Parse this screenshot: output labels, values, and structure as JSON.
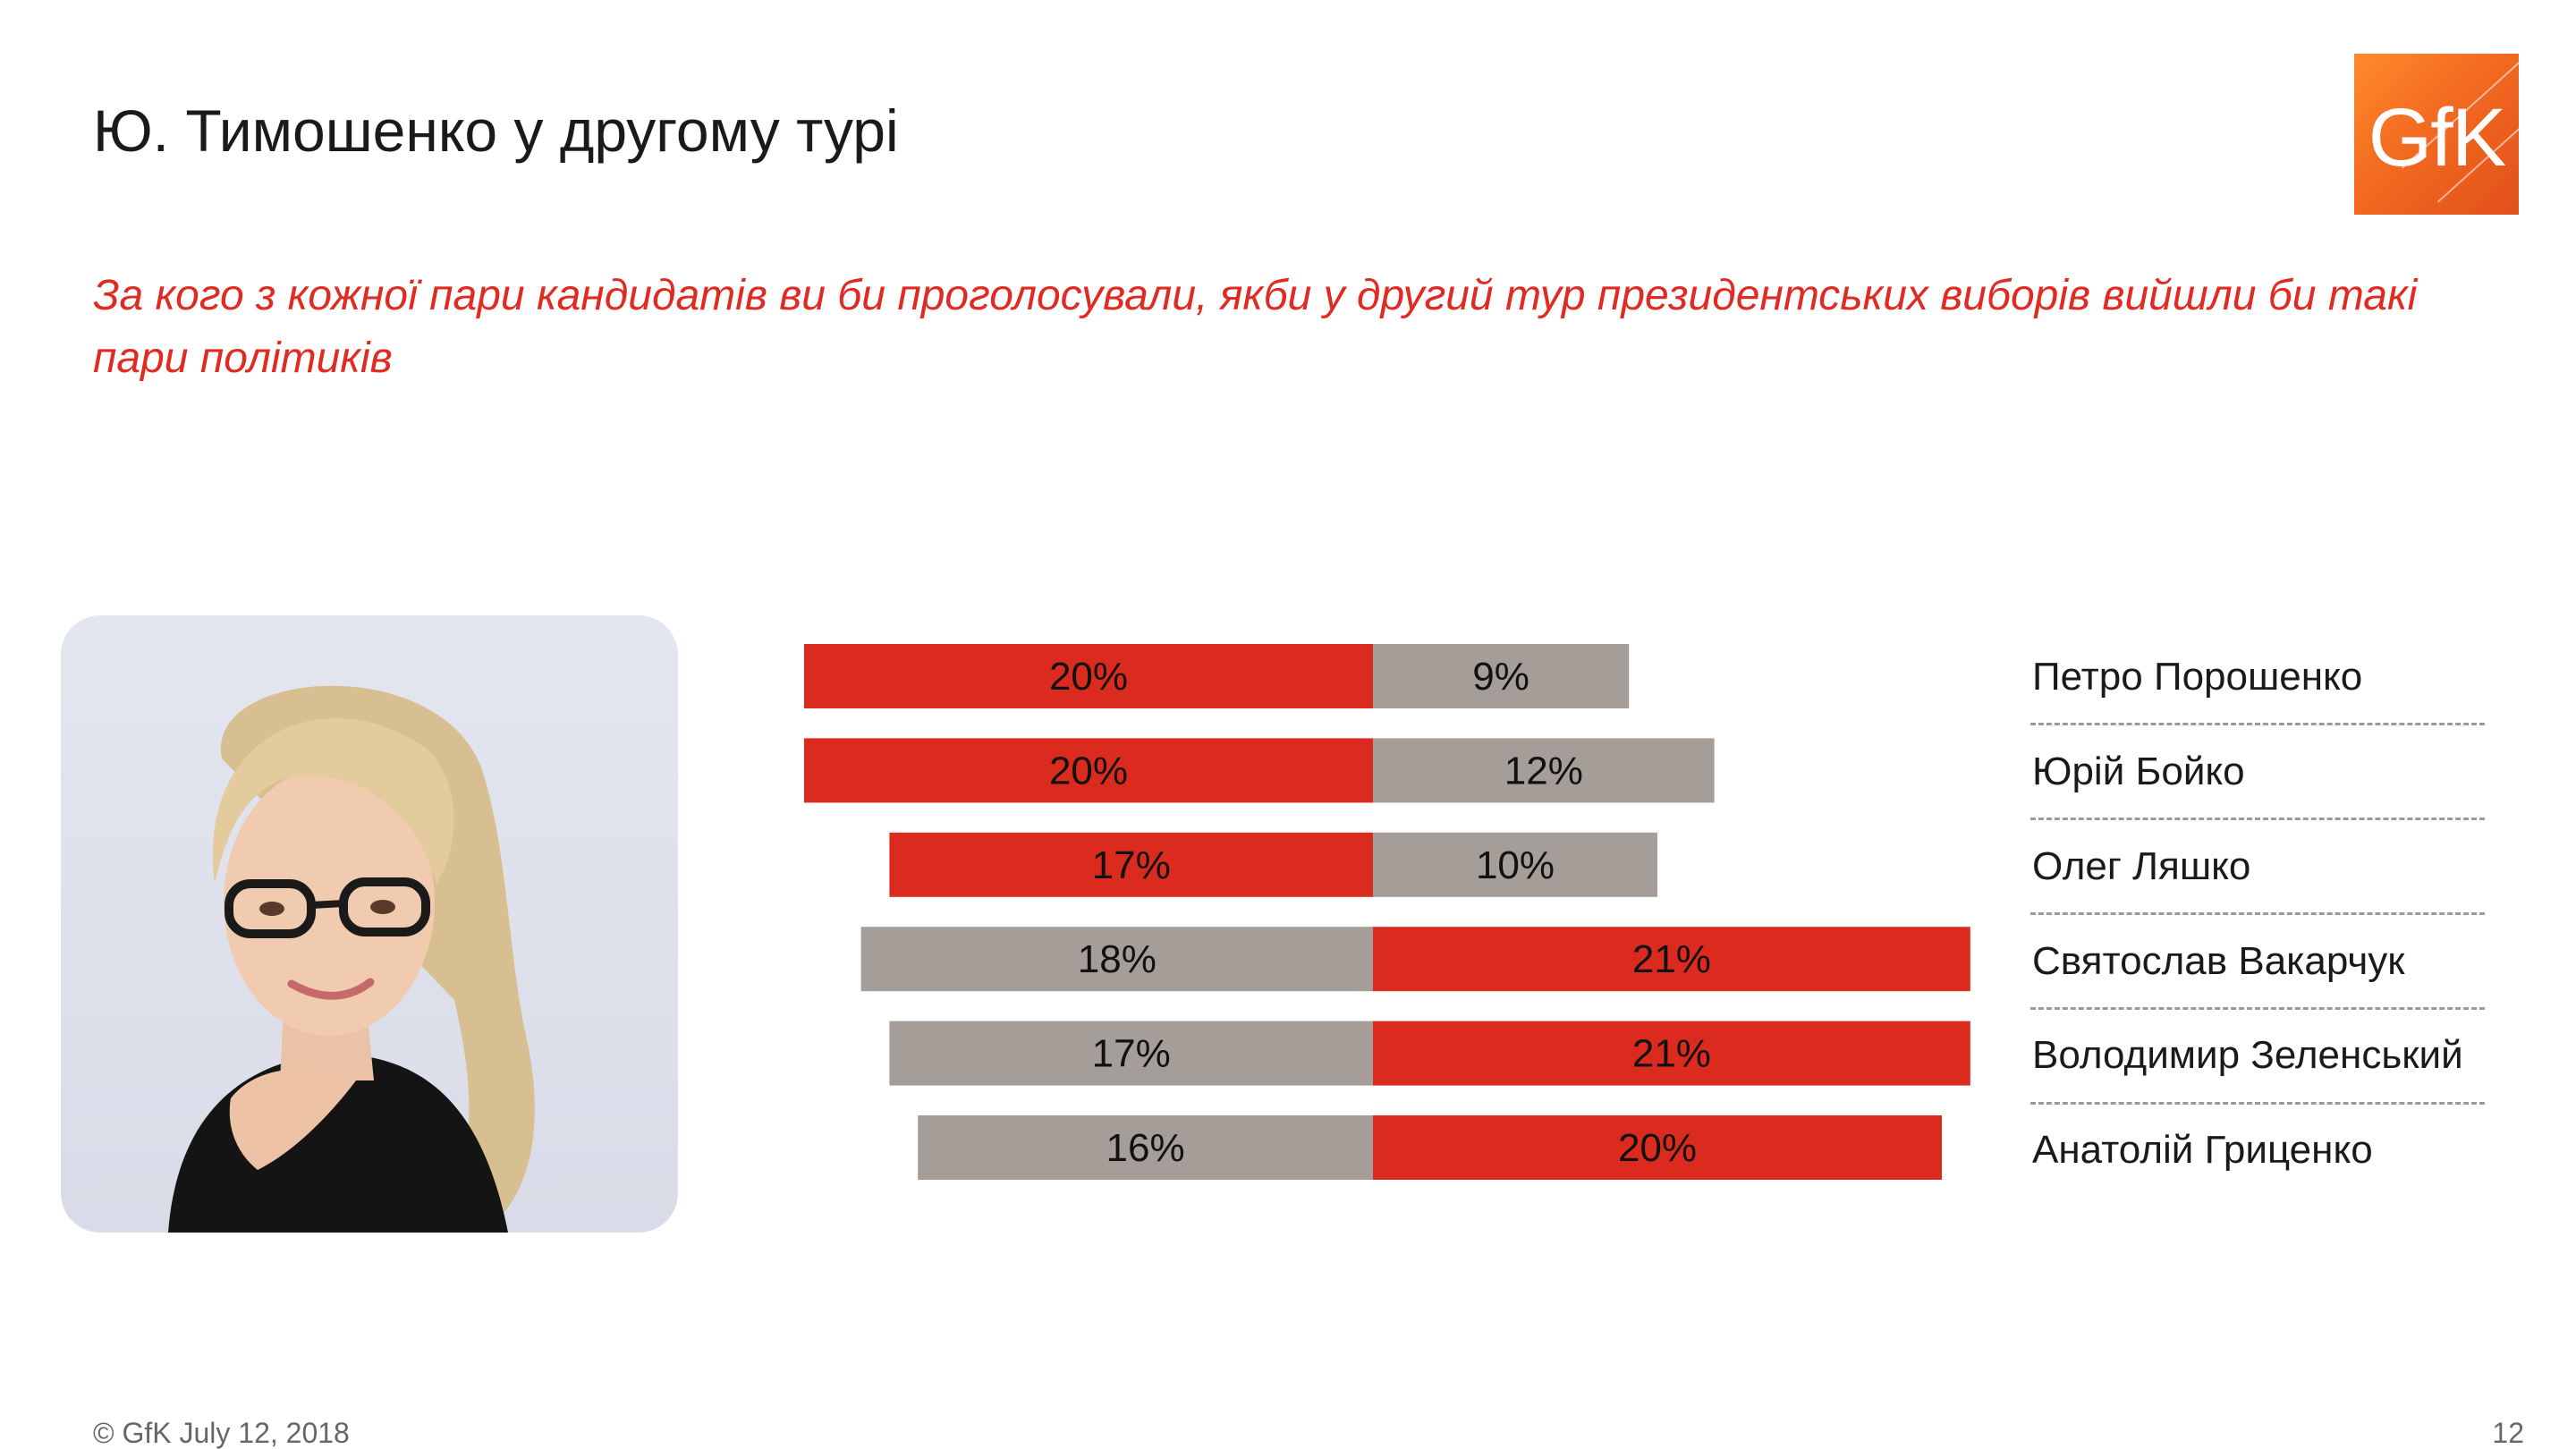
{
  "title": "Ю. Тимошенко у другому турі",
  "subtitle": "За кого з кожної пари кандидатів ви би проголосували, якби у другий тур президентських виборів вийшли би такі пари політиків",
  "logo": {
    "text": "GfK",
    "color": "#f26a21"
  },
  "footer": {
    "copyright": "© GfK July 12, 2018",
    "page_number": "12"
  },
  "colors": {
    "red": "#db2b1f",
    "gray": "#a59d98"
  },
  "chart_data": {
    "type": "bar",
    "orientation": "horizontal-diverging",
    "categories": [
      "Петро Порошенко",
      "Юрій Бойко",
      "Олег Ляшко",
      "Святослав Вакарчук",
      "Володимир Зеленський",
      "Анатолій Гриценко"
    ],
    "series": [
      {
        "side": "left",
        "values": [
          20,
          20,
          17,
          18,
          17,
          16
        ],
        "labels": [
          "20%",
          "20%",
          "17%",
          "18%",
          "17%",
          "16%"
        ],
        "colors": [
          "red",
          "red",
          "red",
          "gray",
          "gray",
          "gray"
        ]
      },
      {
        "side": "right",
        "values": [
          9,
          12,
          10,
          21,
          21,
          20
        ],
        "labels": [
          "9%",
          "12%",
          "10%",
          "21%",
          "21%",
          "20%"
        ],
        "colors": [
          "gray",
          "gray",
          "gray",
          "red",
          "red",
          "red"
        ]
      }
    ],
    "xlabel": "",
    "ylabel": "",
    "grid": false,
    "legend": "none"
  }
}
